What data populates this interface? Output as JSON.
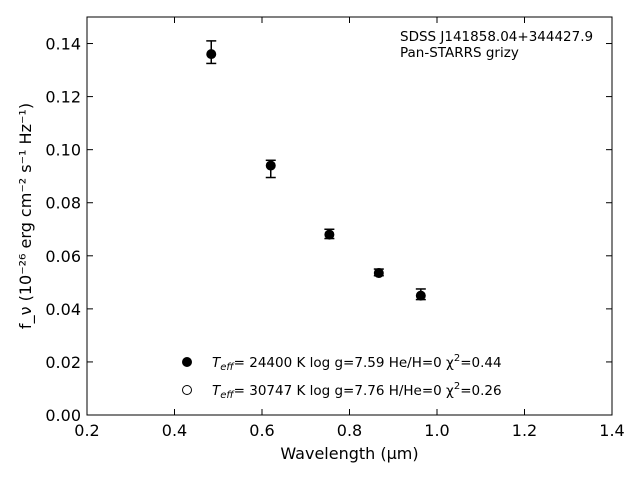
{
  "chart_data": {
    "type": "scatter",
    "title": "",
    "xlabel": "Wavelength (μm)",
    "ylabel": "f_ν (10⁻²⁶ erg cm⁻² s⁻¹ Hz⁻¹)",
    "xlim": [
      0.2,
      1.4
    ],
    "ylim": [
      0.0,
      0.15
    ],
    "x_ticks": [
      "0.2",
      "0.4",
      "0.6",
      "0.8",
      "1.0",
      "1.2",
      "1.4"
    ],
    "y_ticks": [
      "0.00",
      "0.02",
      "0.04",
      "0.06",
      "0.08",
      "0.10",
      "0.12",
      "0.14"
    ],
    "grid": false,
    "annotation": {
      "line1": "SDSS J141858.04+344427.9",
      "line2": "Pan-STARRS grizy"
    },
    "series": [
      {
        "name": "T_eff= 24400 K  log g=7.59  He/H=0  χ²=0.44",
        "marker": "filled-circle",
        "color": "#000000",
        "x": [
          0.484,
          0.62,
          0.754,
          0.867,
          0.963
        ],
        "y": [
          0.136,
          0.094,
          0.068,
          0.0535,
          0.045
        ],
        "yerr_low": [
          0.0035,
          0.0045,
          0.0015,
          0.001,
          0.0015
        ],
        "yerr_high": [
          0.005,
          0.002,
          0.002,
          0.0015,
          0.0025
        ]
      },
      {
        "name": "T_eff= 30747 K  log g=7.76  H/He=0  χ²=0.26",
        "marker": "open-circle",
        "color": "#000000",
        "x": [],
        "y": []
      }
    ],
    "legend": {
      "placement": "bottom-center",
      "entries": [
        {
          "teff": "T",
          "sub": "eff",
          "rest": "= 24400 K  log g=7.59  He/H=0  χ",
          "sup": "2",
          "end": "=0.44",
          "marker": "filled"
        },
        {
          "teff": "T",
          "sub": "eff",
          "rest": "= 30747 K  log g=7.76  H/He=0  χ",
          "sup": "2",
          "end": "=0.26",
          "marker": "open"
        }
      ]
    }
  }
}
